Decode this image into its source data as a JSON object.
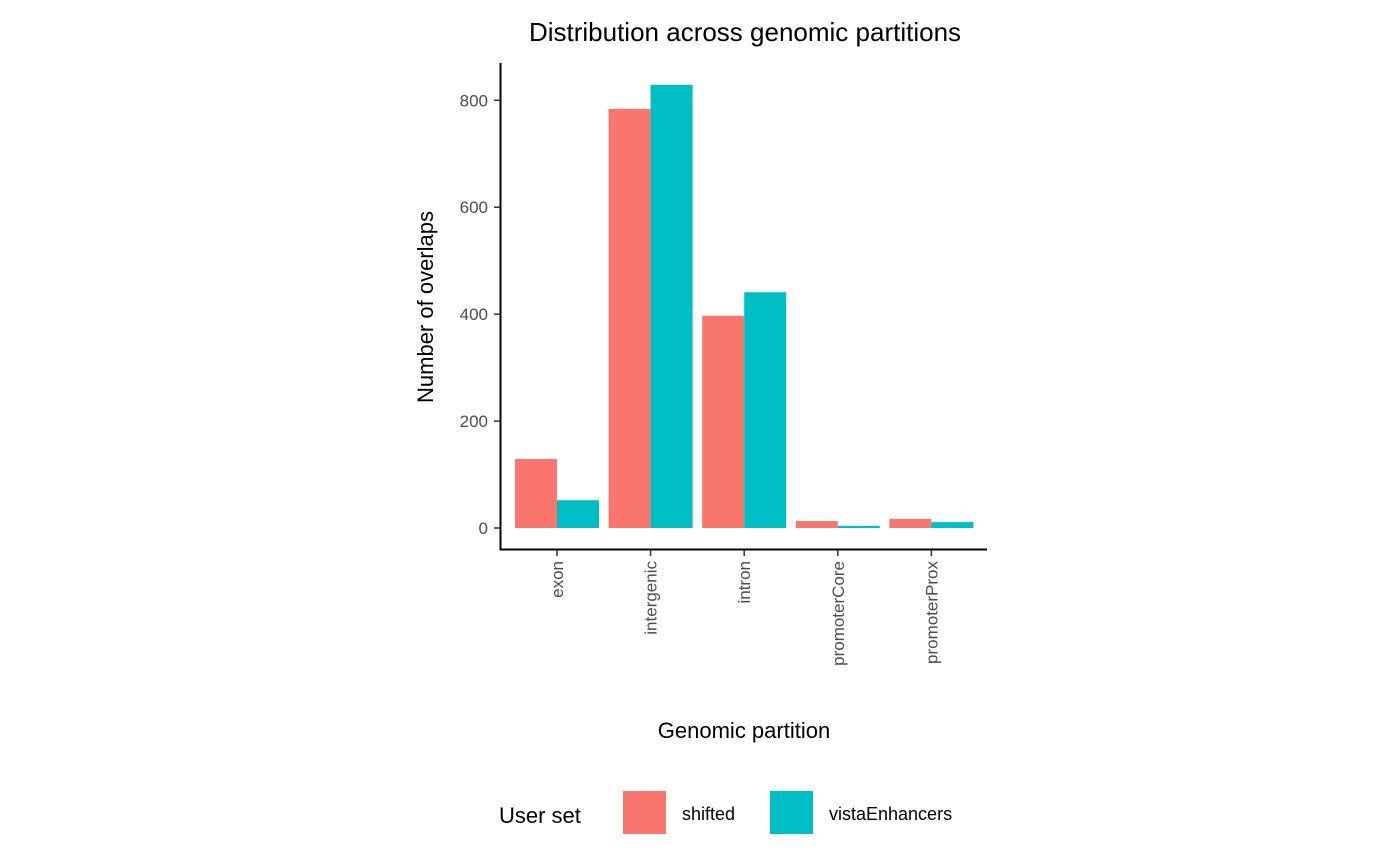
{
  "chart_data": {
    "type": "bar",
    "title": "Distribution across genomic partitions",
    "xlabel": "Genomic partition",
    "ylabel": "Number of overlaps",
    "categories": [
      "exon",
      "intergenic",
      "intron",
      "promoterCore",
      "promoterProx"
    ],
    "series": [
      {
        "name": "shifted",
        "color": "#F8766D",
        "values": [
          129,
          784,
          397,
          13,
          17
        ]
      },
      {
        "name": "vistaEnhancers",
        "color": "#00BFC4",
        "values": [
          52,
          829,
          441,
          4,
          11
        ]
      }
    ],
    "yticks": [
      0,
      200,
      400,
      600,
      800
    ],
    "ylim": [
      0,
      870
    ],
    "grid": false,
    "legend": {
      "title": "User set",
      "position": "bottom"
    }
  }
}
